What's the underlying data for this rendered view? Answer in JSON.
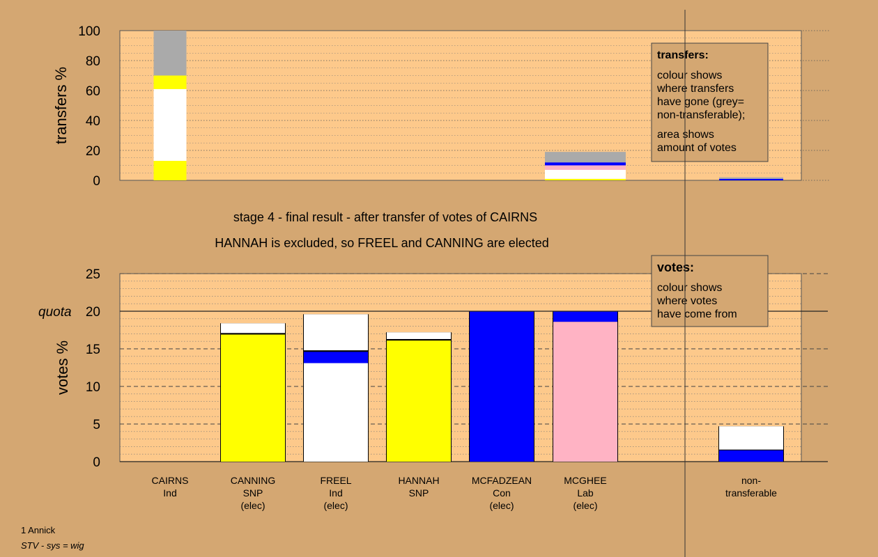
{
  "colors": {
    "background": "#d4a772",
    "plot_bg": "#fdc98b",
    "yellow": "#ffff00",
    "white": "#ffffff",
    "blue": "#0000ff",
    "pink": "#ffb3c4",
    "grey": "#aaaaaa",
    "legend_bg": "#d4a772"
  },
  "chart_data": [
    {
      "type": "bar",
      "ylabel": "transfers %",
      "ylim": [
        0,
        100
      ],
      "yticks": [
        0,
        20,
        40,
        60,
        80,
        100
      ],
      "grid": true,
      "bars": [
        {
          "column": "CAIRNS",
          "segments": [
            {
              "color": "yellow",
              "from": 0,
              "to": 13
            },
            {
              "color": "white",
              "from": 13,
              "to": 61
            },
            {
              "color": "yellow",
              "from": 61,
              "to": 70
            },
            {
              "color": "grey",
              "from": 70,
              "to": 100
            }
          ]
        },
        {
          "column": "MCGHEE",
          "segments": [
            {
              "color": "yellow",
              "from": 0,
              "to": 1
            },
            {
              "color": "white",
              "from": 1,
              "to": 7
            },
            {
              "color": "pink",
              "from": 7,
              "to": 10
            },
            {
              "color": "blue",
              "from": 10,
              "to": 12
            },
            {
              "color": "grey",
              "from": 12,
              "to": 19
            }
          ]
        },
        {
          "column": "NONTRANSFER",
          "segments": [
            {
              "color": "blue",
              "from": 0,
              "to": 1
            },
            {
              "color": "grey",
              "from": 1,
              "to": 2
            }
          ]
        }
      ],
      "legend": {
        "title": "transfers:",
        "lines": [
          "colour shows",
          "where transfers",
          "have gone (grey=",
          "non-transferable);",
          "",
          "area shows",
          "amount of votes"
        ]
      }
    },
    {
      "type": "bar",
      "ylabel": "votes %",
      "ylim": [
        0,
        25
      ],
      "yticks": [
        0,
        5,
        10,
        15,
        20,
        25
      ],
      "quota_label": "quota",
      "quota": 20,
      "grid": true,
      "categories": [
        {
          "key": "CAIRNS",
          "lines": [
            "CAIRNS",
            "Ind"
          ]
        },
        {
          "key": "CANNING",
          "lines": [
            "CANNING",
            "SNP",
            "(elec)"
          ]
        },
        {
          "key": "FREEL",
          "lines": [
            "FREEL",
            "Ind",
            "(elec)"
          ]
        },
        {
          "key": "HANNAH",
          "lines": [
            "HANNAH",
            "SNP"
          ]
        },
        {
          "key": "MCFADZEAN",
          "lines": [
            "MCFADZEAN",
            "Con",
            "(elec)"
          ]
        },
        {
          "key": "MCGHEE",
          "lines": [
            "MCGHEE",
            "Lab",
            "(elec)"
          ]
        },
        {
          "key": "NONTRANSFER",
          "lines": [
            "non-",
            "transferable"
          ]
        }
      ],
      "bars": [
        {
          "column": "CAIRNS",
          "segments": []
        },
        {
          "column": "CANNING",
          "segments": [
            {
              "color": "yellow",
              "from": 0,
              "to": 16.9
            },
            {
              "color": "white",
              "from": 17.1,
              "to": 18.4
            }
          ]
        },
        {
          "column": "FREEL",
          "segments": [
            {
              "color": "white",
              "from": 0,
              "to": 13.1
            },
            {
              "color": "blue",
              "from": 13.1,
              "to": 14.6
            },
            {
              "color": "white",
              "from": 14.8,
              "to": 19.6
            }
          ]
        },
        {
          "column": "HANNAH",
          "segments": [
            {
              "color": "yellow",
              "from": 0,
              "to": 16.1
            },
            {
              "color": "white",
              "from": 16.3,
              "to": 17.2
            }
          ]
        },
        {
          "column": "MCFADZEAN",
          "segments": [
            {
              "color": "blue",
              "from": 0,
              "to": 20
            }
          ]
        },
        {
          "column": "MCGHEE",
          "segments": [
            {
              "color": "pink",
              "from": 0,
              "to": 18.6
            },
            {
              "color": "blue",
              "from": 18.6,
              "to": 20
            }
          ]
        },
        {
          "column": "NONTRANSFER",
          "segments": [
            {
              "color": "blue",
              "from": 0,
              "to": 1.5
            },
            {
              "color": "white",
              "from": 1.6,
              "to": 4.7
            }
          ]
        }
      ],
      "legend": {
        "title": "votes:",
        "lines": [
          "colour shows",
          "where votes",
          "have come from"
        ]
      }
    }
  ],
  "titles": {
    "line1": "stage 4 - final result - after transfer of votes of CAIRNS",
    "line2": "HANNAH is excluded, so FREEL and CANNING are elected"
  },
  "footer": {
    "line1": "1 Annick",
    "line2": "STV - sys = wig"
  }
}
